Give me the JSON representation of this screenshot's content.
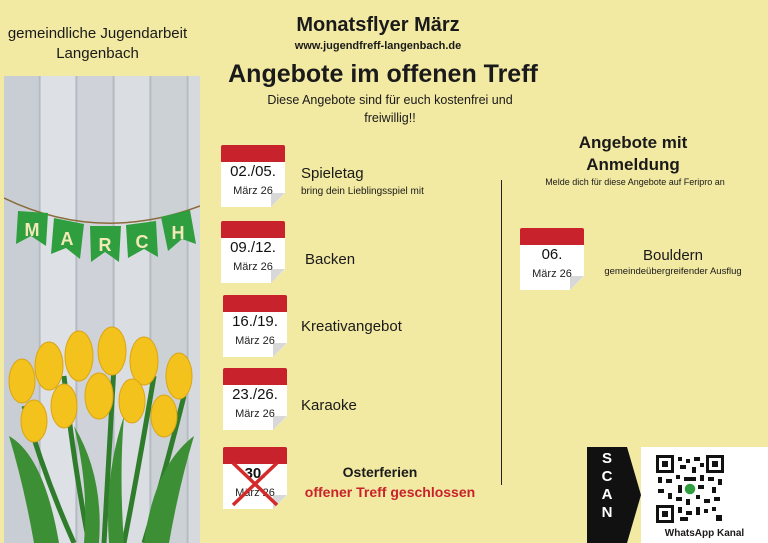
{
  "header": {
    "org_line1": "gemeindliche Jugendarbeit",
    "org_line2": "Langenbach",
    "title": "Monatsflyer März",
    "url": "www.jugendfreff-langenbach.de",
    "heading": "Angebote im offenen Treff",
    "subtitle_line1": "Diese Angebote sind für euch kostenfrei und",
    "subtitle_line2": "freiwillig!!"
  },
  "banner_letters": [
    "M",
    "A",
    "R",
    "C",
    "H"
  ],
  "events": [
    {
      "date": "02./05.",
      "month": "März 26",
      "title": "Spieletag",
      "subtitle": "bring dein Lieblingsspiel mit"
    },
    {
      "date": "09./12.",
      "month": "März 26",
      "title": "Backen"
    },
    {
      "date": "16./19.",
      "month": "März 26",
      "title": "Kreativangebot"
    },
    {
      "date": "23./26.",
      "month": "März 26",
      "title": "Karaoke"
    },
    {
      "date": "30.",
      "month": "März 26",
      "cancelled": true,
      "title_line1": "Osterferien",
      "title_line2": "offener Treff geschlossen"
    }
  ],
  "registration": {
    "heading_line1": "Angebote mit",
    "heading_line2": "Anmeldung",
    "note": "Melde dich für diese Angebote auf Feripro an",
    "event": {
      "date": "06.",
      "month": "März 26",
      "title": "Bouldern",
      "subtitle": "gemeindeübergreifender Ausflug"
    }
  },
  "scan": {
    "letters": [
      "S",
      "C",
      "A",
      "N"
    ],
    "label": "WhatsApp Kanal"
  },
  "colors": {
    "background": "#f2e9a2",
    "accent_red": "#c8232c",
    "banner_green": "#2e9e3e",
    "tulip_yellow": "#f3c21c"
  }
}
